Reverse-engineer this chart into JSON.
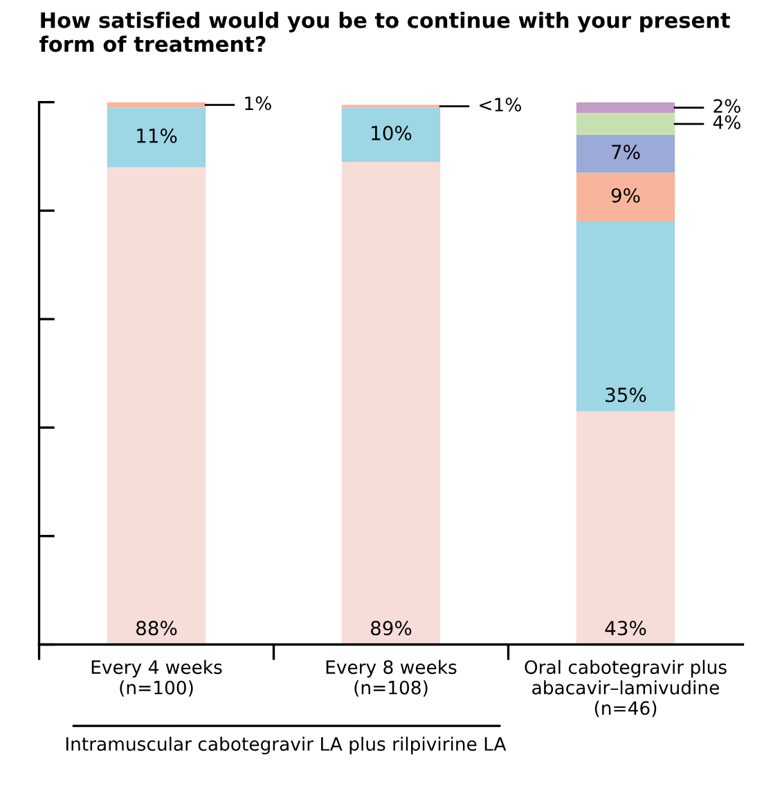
{
  "chart_data": {
    "type": "bar",
    "stacked": true,
    "relative": false,
    "title": "How satisfied would you be to continue with your present form of treatment?",
    "categories": [
      "Every 4 weeks\n(n=100)",
      "Every 8 weeks\n(n=108)",
      "Oral cabotegravir plus\nabacavir–lamivudine\n(n=46)"
    ],
    "series": [
      {
        "color": "#f6ddd8",
        "values": [
          88,
          89,
          43
        ],
        "value_labels": [
          "88%",
          "89%",
          "43%"
        ]
      },
      {
        "color": "#9dd6e5",
        "values": [
          11,
          10,
          35
        ],
        "value_labels": [
          "11%",
          "10%",
          "35%"
        ]
      },
      {
        "color": "#f8b59c",
        "values": [
          1,
          0.5,
          9
        ],
        "value_labels": [
          "1%",
          "<1%",
          "9%"
        ]
      },
      {
        "color": "#9caad7",
        "values": [
          null,
          null,
          7
        ],
        "value_labels": [
          null,
          null,
          "7%"
        ]
      },
      {
        "color": "#c8e0b0",
        "values": [
          null,
          null,
          4
        ],
        "value_labels": [
          null,
          null,
          "4%"
        ]
      },
      {
        "color": "#c49cc6",
        "values": [
          null,
          null,
          2
        ],
        "value_labels": [
          null,
          null,
          "2%"
        ]
      }
    ],
    "ylim": [
      0,
      100
    ],
    "yticks": [
      {
        "value": 0,
        "label": null
      },
      {
        "value": 20,
        "label": null
      },
      {
        "value": 40,
        "label": null
      },
      {
        "value": 60,
        "label": null
      },
      {
        "value": 80,
        "label": null
      },
      {
        "value": 100,
        "label": null
      }
    ],
    "tick_labels": "x",
    "grid": false,
    "legend": false,
    "annotations": [
      "Intramuscular cabotegravir LA plus rilpivirine LA"
    ]
  }
}
